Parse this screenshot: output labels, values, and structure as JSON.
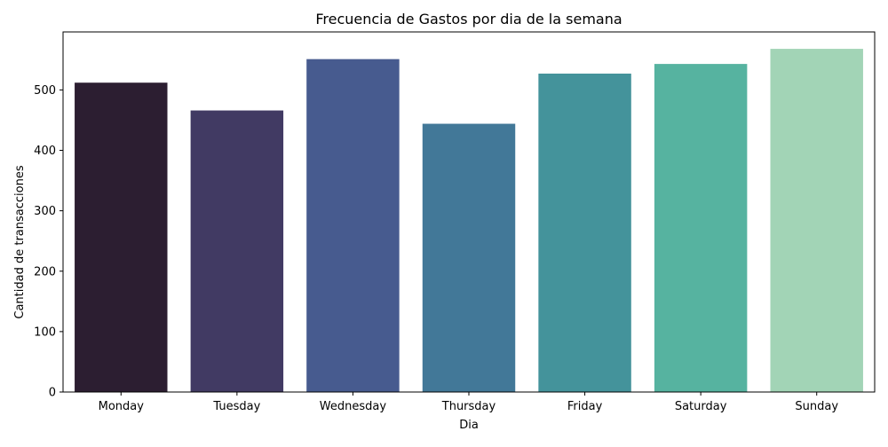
{
  "chart_data": {
    "type": "bar",
    "title": "Frecuencia de Gastos por dia de la semana",
    "xlabel": "Dia",
    "ylabel": "Cantidad de transacciones",
    "categories": [
      "Monday",
      "Tuesday",
      "Wednesday",
      "Thursday",
      "Friday",
      "Saturday",
      "Sunday"
    ],
    "values": [
      512,
      466,
      551,
      444,
      527,
      543,
      568
    ],
    "ylim": [
      0,
      596
    ],
    "yticks": [
      0,
      100,
      200,
      300,
      400,
      500
    ],
    "grid": false,
    "colors": [
      "#2c1e31",
      "#413a63",
      "#475b8f",
      "#427898",
      "#44939b",
      "#56b3a0",
      "#a2d4b6"
    ]
  }
}
